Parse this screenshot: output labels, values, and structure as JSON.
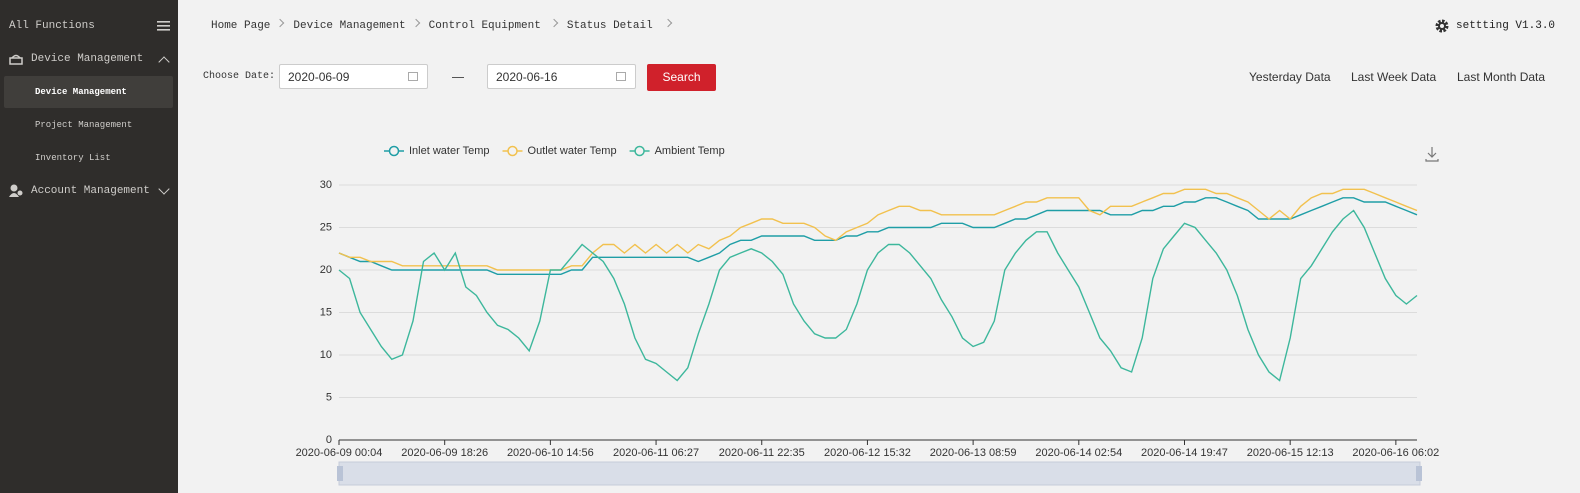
{
  "sidebar": {
    "title": "All Functions",
    "menu": [
      {
        "label": "Device Management",
        "items": [
          "Device Management",
          "Project Management",
          "Inventory List"
        ]
      },
      {
        "label": "Account Management"
      }
    ]
  },
  "breadcrumb": [
    "Home Page",
    "Device Management",
    "Control Equipment",
    "Status Detail"
  ],
  "version": "settting V1.3.0",
  "filter": {
    "label": "Choose Date:",
    "start": "2020-06-09",
    "end": "2020-06-16",
    "button": "Search",
    "quick": [
      "Yesterday Data",
      "Last Week Data",
      "Last Month Data"
    ]
  },
  "chart_data": {
    "type": "line",
    "grid": true,
    "legend": "top",
    "categories": [
      "2020-06-09 00:04",
      null,
      null,
      null,
      null,
      null,
      null,
      null,
      null,
      null,
      "2020-06-09 18:26",
      null,
      null,
      null,
      null,
      null,
      null,
      null,
      null,
      null,
      "2020-06-10 14:56",
      null,
      null,
      null,
      null,
      null,
      null,
      null,
      null,
      null,
      "2020-06-11 06:27",
      null,
      null,
      null,
      null,
      null,
      null,
      null,
      null,
      null,
      "2020-06-11 22:35",
      null,
      null,
      null,
      null,
      null,
      null,
      null,
      null,
      null,
      "2020-06-12 15:32",
      null,
      null,
      null,
      null,
      null,
      null,
      null,
      null,
      null,
      "2020-06-13 08:59",
      null,
      null,
      null,
      null,
      null,
      null,
      null,
      null,
      null,
      "2020-06-14 02:54",
      null,
      null,
      null,
      null,
      null,
      null,
      null,
      null,
      null,
      "2020-06-14 19:47",
      null,
      null,
      null,
      null,
      null,
      null,
      null,
      null,
      null,
      "2020-06-15 12:13",
      null,
      null,
      null,
      null,
      null,
      null,
      null,
      null,
      null,
      "2020-06-16 06:02",
      null,
      null
    ],
    "ylim": [
      0,
      30
    ],
    "yticks": [
      0,
      5,
      10,
      15,
      20,
      25,
      30
    ],
    "series": [
      {
        "name": "Inlet water Temp",
        "color": "#1f9ea6",
        "values": [
          22,
          21.5,
          21,
          21,
          20.5,
          20,
          20,
          20,
          20,
          20,
          20,
          20,
          20,
          20,
          20,
          19.5,
          19.5,
          19.5,
          19.5,
          19.5,
          19.5,
          19.5,
          20,
          20,
          21.5,
          21.5,
          21.5,
          21.5,
          21.5,
          21.5,
          21.5,
          21.5,
          21.5,
          21.5,
          21,
          21.5,
          22,
          23,
          23.5,
          23.5,
          24,
          24,
          24,
          24,
          24,
          23.5,
          23.5,
          23.5,
          24,
          24,
          24.5,
          24.5,
          25,
          25,
          25,
          25,
          25,
          25.5,
          25.5,
          25.5,
          25,
          25,
          25,
          25.5,
          26,
          26,
          26.5,
          27,
          27,
          27,
          27,
          27,
          27,
          26.5,
          26.5,
          26.5,
          27,
          27,
          27.5,
          27.5,
          28,
          28,
          28.5,
          28.5,
          28,
          27.5,
          27,
          26,
          26,
          26,
          26,
          26.5,
          27,
          27.5,
          28,
          28.5,
          28.5,
          28,
          28,
          28,
          27.5,
          27,
          26.5
        ]
      },
      {
        "name": "Outlet water Temp",
        "color": "#f2c14e",
        "values": [
          22,
          21.5,
          21.5,
          21,
          21,
          21,
          20.5,
          20.5,
          20.5,
          20.5,
          20.5,
          20.5,
          20.5,
          20.5,
          20.5,
          20,
          20,
          20,
          20,
          20,
          20,
          20,
          20.5,
          20.5,
          22,
          23,
          23,
          22,
          23,
          22,
          23,
          22,
          23,
          22,
          23,
          22.5,
          23.5,
          24,
          25,
          25.5,
          26,
          26,
          25.5,
          25.5,
          25.5,
          25,
          24,
          23.5,
          24.5,
          25,
          25.5,
          26.5,
          27,
          27.5,
          27.5,
          27,
          27,
          26.5,
          26.5,
          26.5,
          26.5,
          26.5,
          26.5,
          27,
          27.5,
          28,
          28,
          28.5,
          28.5,
          28.5,
          28.5,
          27,
          26.5,
          27.5,
          27.5,
          27.5,
          28,
          28.5,
          29,
          29,
          29.5,
          29.5,
          29.5,
          29,
          29,
          28.5,
          28,
          27,
          26,
          27,
          26,
          27.5,
          28.5,
          29,
          29,
          29.5,
          29.5,
          29.5,
          29,
          28.5,
          28,
          27.5,
          27
        ]
      },
      {
        "name": "Ambient Temp",
        "color": "#3db79c",
        "values": [
          20,
          19,
          15,
          13,
          11,
          9.5,
          10,
          14,
          21,
          22,
          20,
          22,
          18,
          17,
          15,
          13.5,
          13,
          12,
          10.5,
          14,
          20,
          20,
          21.5,
          23,
          22,
          21,
          19,
          16,
          12,
          9.5,
          9,
          8,
          7,
          8.5,
          12.5,
          16,
          20,
          21.5,
          22,
          22.5,
          22,
          21,
          19.5,
          16,
          14,
          12.5,
          12,
          12,
          13,
          16,
          20,
          22,
          23,
          23,
          22,
          20.5,
          19,
          16.5,
          14.5,
          12,
          11,
          11.5,
          14,
          20,
          22,
          23.5,
          24.5,
          24.5,
          22,
          20,
          18,
          15,
          12,
          10.5,
          8.5,
          8,
          12,
          19,
          22.5,
          24,
          25.5,
          25,
          23.5,
          22,
          20,
          17,
          13,
          10,
          8,
          7,
          12,
          19,
          20.5,
          22.5,
          24.5,
          26,
          27,
          25,
          22,
          19,
          17,
          16,
          17
        ]
      }
    ]
  }
}
